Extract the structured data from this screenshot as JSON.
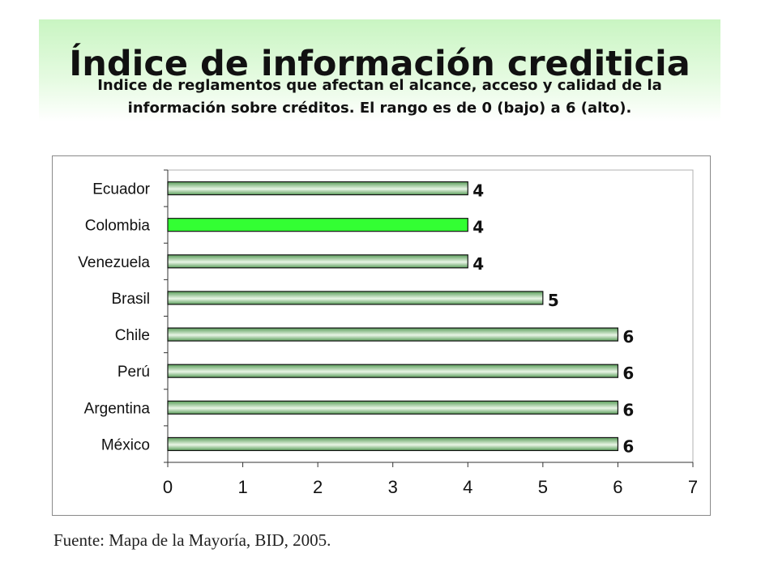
{
  "header": {
    "title": "Índice de información crediticia",
    "subtitle_line1": "Indice de reglamentos que afectan el alcance, acceso y calidad de la",
    "subtitle_line2": "información sobre créditos. El rango es de 0 (bajo) a 6 (alto)."
  },
  "source": "Fuente: Mapa de la Mayoría, BID, 2005.",
  "colors": {
    "bar_gradient_dark": "#5a9e5a",
    "bar_gradient_light": "#e9f5e6",
    "highlight_bar": "#33ff33",
    "bar_border": "#111111",
    "header_bg": "#c9f5c2"
  },
  "chart_data": {
    "type": "bar",
    "orientation": "horizontal",
    "categories": [
      "Ecuador",
      "Colombia",
      "Venezuela",
      "Brasil",
      "Chile",
      "Perú",
      "Argentina",
      "México"
    ],
    "values": [
      4,
      4,
      4,
      5,
      6,
      6,
      6,
      6
    ],
    "data_labels": [
      "4",
      "4",
      "4",
      "5",
      "6",
      "6",
      "6",
      "6"
    ],
    "highlighted_category": "Colombia",
    "xlim": [
      0,
      7
    ],
    "xticks": [
      0,
      1,
      2,
      3,
      4,
      5,
      6,
      7
    ],
    "tick_labels": [
      "0",
      "1",
      "2",
      "3",
      "4",
      "5",
      "6",
      "7"
    ],
    "grid": false,
    "legend": "none"
  }
}
